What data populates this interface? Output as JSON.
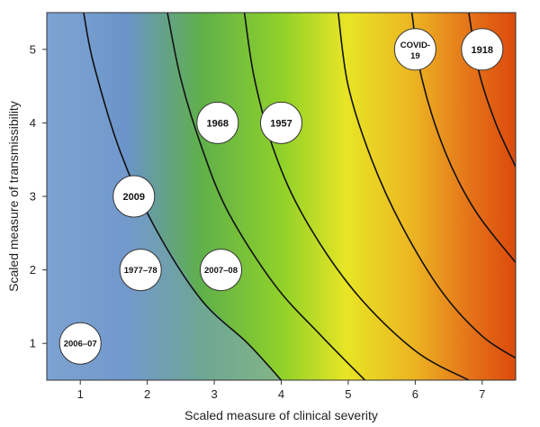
{
  "chart_data": {
    "type": "scatter",
    "xlabel": "Scaled measure of clinical severity",
    "ylabel": "Scaled measure of transmissibility",
    "xlim": [
      0.5,
      7.5
    ],
    "ylim": [
      0.5,
      5.5
    ],
    "x_ticks": [
      "1",
      "2",
      "3",
      "4",
      "5",
      "6",
      "7"
    ],
    "y_ticks": [
      "1",
      "2",
      "3",
      "4",
      "5"
    ],
    "grid": false,
    "background_gradient": [
      "#7fa7d3",
      "#6a93c9",
      "#5fb04a",
      "#8fd12a",
      "#e8e525",
      "#ecb522",
      "#e5741a",
      "#dc4a0c"
    ],
    "contour_boundaries": [
      [
        [
          1.05,
          5.5
        ],
        [
          1.2,
          4.8
        ],
        [
          1.6,
          3.6
        ],
        [
          2.1,
          2.6
        ],
        [
          2.8,
          1.6
        ],
        [
          3.5,
          1.0
        ],
        [
          4.0,
          0.5
        ]
      ],
      [
        [
          2.3,
          5.5
        ],
        [
          2.5,
          4.6
        ],
        [
          2.8,
          3.7
        ],
        [
          3.2,
          2.8
        ],
        [
          3.9,
          1.8
        ],
        [
          4.6,
          1.1
        ],
        [
          5.25,
          0.5
        ]
      ],
      [
        [
          3.45,
          5.5
        ],
        [
          3.6,
          4.6
        ],
        [
          3.9,
          3.6
        ],
        [
          4.35,
          2.7
        ],
        [
          5.1,
          1.7
        ],
        [
          6.0,
          0.9
        ],
        [
          6.8,
          0.5
        ]
      ],
      [
        [
          4.85,
          5.5
        ],
        [
          5.0,
          4.5
        ],
        [
          5.35,
          3.5
        ],
        [
          5.8,
          2.6
        ],
        [
          6.4,
          1.7
        ],
        [
          7.0,
          1.1
        ],
        [
          7.5,
          0.8
        ]
      ],
      [
        [
          5.95,
          5.5
        ],
        [
          6.1,
          4.6
        ],
        [
          6.45,
          3.6
        ],
        [
          6.9,
          2.8
        ],
        [
          7.5,
          2.1
        ]
      ],
      [
        [
          6.8,
          5.5
        ],
        [
          6.95,
          4.7
        ],
        [
          7.2,
          4.0
        ],
        [
          7.5,
          3.4
        ]
      ]
    ],
    "points": [
      {
        "label": "2006–07",
        "x": 1.0,
        "y": 1.0
      },
      {
        "label": "1977–78",
        "x": 1.9,
        "y": 2.0
      },
      {
        "label": "2009",
        "x": 1.8,
        "y": 3.0
      },
      {
        "label": "2007–08",
        "x": 3.1,
        "y": 2.0
      },
      {
        "label": "1968",
        "x": 3.05,
        "y": 4.0
      },
      {
        "label": "1957",
        "x": 4.0,
        "y": 4.0
      },
      {
        "label": "COVID-19",
        "label_lines": [
          "COVID-",
          "19"
        ],
        "x": 6.0,
        "y": 5.0
      },
      {
        "label": "1918",
        "x": 7.0,
        "y": 5.0
      }
    ]
  }
}
